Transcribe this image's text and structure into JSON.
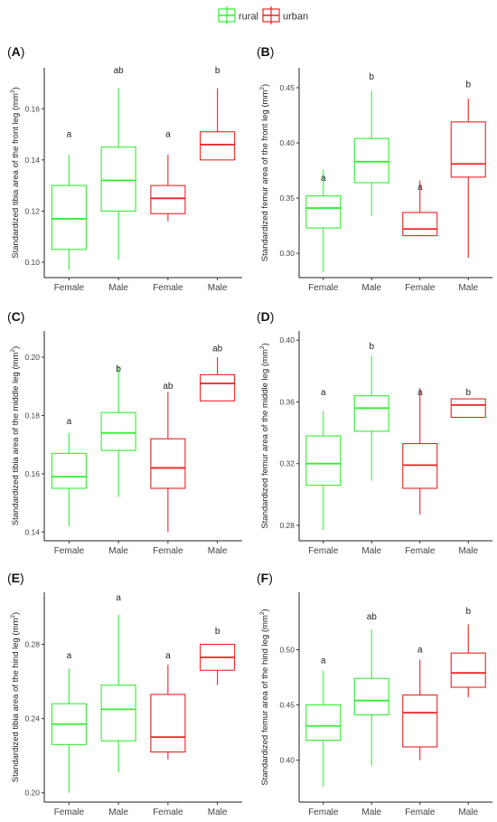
{
  "legend": {
    "entries": [
      {
        "name": "rural",
        "color": "#33ee33"
      },
      {
        "name": "urban",
        "color": "#ee2222"
      }
    ],
    "placement": "top-center"
  },
  "chart_data": [
    {
      "type": "box",
      "panel_label": "(A)",
      "ylabel": "Standardized tibia area of the front leg (mm",
      "ylabel_sup": "2",
      "ylabel_tail": ")",
      "categories": [
        "Female",
        "Male",
        "Female",
        "Male"
      ],
      "groups": [
        "rural",
        "rural",
        "urban",
        "urban"
      ],
      "ylim": [
        0.094,
        0.176
      ],
      "yticks": [
        0.1,
        0.12,
        0.14,
        0.16
      ],
      "yticklabels": [
        "0.10",
        "0.12",
        "0.14",
        "0.16"
      ],
      "boxes": [
        {
          "min": 0.097,
          "q1": 0.105,
          "median": 0.117,
          "q3": 0.13,
          "max": 0.142
        },
        {
          "min": 0.101,
          "q1": 0.12,
          "median": 0.132,
          "q3": 0.145,
          "max": 0.168
        },
        {
          "min": 0.116,
          "q1": 0.119,
          "median": 0.125,
          "q3": 0.13,
          "max": 0.142
        },
        {
          "min": 0.14,
          "q1": 0.14,
          "median": 0.146,
          "q3": 0.151,
          "max": 0.168
        }
      ],
      "letters": [
        "a",
        "ab",
        "a",
        "b"
      ],
      "letter_y": [
        0.15,
        0.175,
        0.15,
        0.175
      ],
      "grid": false
    },
    {
      "type": "box",
      "panel_label": "(B)",
      "ylabel": "Standardized femur area of the front leg (mm",
      "ylabel_sup": "2",
      "ylabel_tail": ")",
      "categories": [
        "Female",
        "Male",
        "Female",
        "Male"
      ],
      "groups": [
        "rural",
        "rural",
        "urban",
        "urban"
      ],
      "ylim": [
        0.278,
        0.468
      ],
      "yticks": [
        0.3,
        0.35,
        0.4,
        0.45
      ],
      "yticklabels": [
        "0.30",
        "0.35",
        "0.40",
        "0.45"
      ],
      "boxes": [
        {
          "min": 0.283,
          "q1": 0.323,
          "median": 0.341,
          "q3": 0.352,
          "max": 0.376
        },
        {
          "min": 0.334,
          "q1": 0.364,
          "median": 0.383,
          "q3": 0.404,
          "max": 0.447
        },
        {
          "min": 0.316,
          "q1": 0.316,
          "median": 0.322,
          "q3": 0.337,
          "max": 0.366
        },
        {
          "min": 0.296,
          "q1": 0.369,
          "median": 0.381,
          "q3": 0.419,
          "max": 0.44
        }
      ],
      "letters": [
        "a",
        "b",
        "a",
        "b"
      ],
      "letter_y": [
        0.368,
        0.46,
        0.36,
        0.453
      ],
      "grid": false
    },
    {
      "type": "box",
      "panel_label": "(C)",
      "ylabel": "Standardized tibia area of the middle leg (mm",
      "ylabel_sup": "2",
      "ylabel_tail": ")",
      "categories": [
        "Female",
        "Male",
        "Female",
        "Male"
      ],
      "groups": [
        "rural",
        "rural",
        "urban",
        "urban"
      ],
      "ylim": [
        0.137,
        0.209
      ],
      "yticks": [
        0.14,
        0.16,
        0.18,
        0.2
      ],
      "yticklabels": [
        "0.14",
        "0.16",
        "0.18",
        "0.20"
      ],
      "boxes": [
        {
          "min": 0.142,
          "q1": 0.155,
          "median": 0.159,
          "q3": 0.167,
          "max": 0.174
        },
        {
          "min": 0.152,
          "q1": 0.168,
          "median": 0.174,
          "q3": 0.181,
          "max": 0.197
        },
        {
          "min": 0.14,
          "q1": 0.155,
          "median": 0.162,
          "q3": 0.172,
          "max": 0.188
        },
        {
          "min": 0.185,
          "q1": 0.185,
          "median": 0.191,
          "q3": 0.194,
          "max": 0.2
        }
      ],
      "letters": [
        "a",
        "b",
        "ab",
        "ab"
      ],
      "letter_y": [
        0.178,
        0.196,
        0.19,
        0.203
      ],
      "grid": false
    },
    {
      "type": "box",
      "panel_label": "(D)",
      "ylabel": "Standardized femur area of the middle leg (mm",
      "ylabel_sup": "2",
      "ylabel_tail": ")",
      "categories": [
        "Female",
        "Male",
        "Female",
        "Male"
      ],
      "groups": [
        "rural",
        "rural",
        "urban",
        "urban"
      ],
      "ylim": [
        0.27,
        0.406
      ],
      "yticks": [
        0.28,
        0.32,
        0.36,
        0.4
      ],
      "yticklabels": [
        "0.28",
        "0.32",
        "0.36",
        "0.40"
      ],
      "boxes": [
        {
          "min": 0.277,
          "q1": 0.306,
          "median": 0.32,
          "q3": 0.338,
          "max": 0.354
        },
        {
          "min": 0.309,
          "q1": 0.341,
          "median": 0.356,
          "q3": 0.364,
          "max": 0.39
        },
        {
          "min": 0.287,
          "q1": 0.304,
          "median": 0.319,
          "q3": 0.333,
          "max": 0.369
        },
        {
          "min": 0.35,
          "q1": 0.35,
          "median": 0.358,
          "q3": 0.362,
          "max": 0.362
        }
      ],
      "letters": [
        "a",
        "b",
        "a",
        "b"
      ],
      "letter_y": [
        0.366,
        0.396,
        0.366,
        0.366
      ],
      "grid": false
    },
    {
      "type": "box",
      "panel_label": "(E)",
      "ylabel": "Standardized tibia area of the hind leg (mm",
      "ylabel_sup": "2",
      "ylabel_tail": ")",
      "categories": [
        "Female",
        "Male",
        "Female",
        "Male"
      ],
      "groups": [
        "rural",
        "rural",
        "urban",
        "urban"
      ],
      "ylim": [
        0.195,
        0.308
      ],
      "yticks": [
        0.2,
        0.24,
        0.28
      ],
      "yticklabels": [
        "0.20",
        "0.24",
        "0.28"
      ],
      "boxes": [
        {
          "min": 0.2,
          "q1": 0.226,
          "median": 0.237,
          "q3": 0.248,
          "max": 0.267
        },
        {
          "min": 0.211,
          "q1": 0.228,
          "median": 0.245,
          "q3": 0.258,
          "max": 0.296
        },
        {
          "min": 0.218,
          "q1": 0.222,
          "median": 0.23,
          "q3": 0.253,
          "max": 0.269
        },
        {
          "min": 0.258,
          "q1": 0.266,
          "median": 0.273,
          "q3": 0.28,
          "max": 0.28
        }
      ],
      "letters": [
        "a",
        "a",
        "a",
        "b"
      ],
      "letter_y": [
        0.274,
        0.305,
        0.274,
        0.287
      ],
      "grid": false
    },
    {
      "type": "box",
      "panel_label": "(F)",
      "ylabel": "Standardized femur area of the hind leg (mm",
      "ylabel_sup": "2",
      "ylabel_tail": ")",
      "categories": [
        "Female",
        "Male",
        "Female",
        "Male"
      ],
      "groups": [
        "rural",
        "rural",
        "urban",
        "urban"
      ],
      "ylim": [
        0.362,
        0.552
      ],
      "yticks": [
        0.4,
        0.45,
        0.5
      ],
      "yticklabels": [
        "0.40",
        "0.45",
        "0.50"
      ],
      "boxes": [
        {
          "min": 0.376,
          "q1": 0.418,
          "median": 0.431,
          "q3": 0.45,
          "max": 0.481
        },
        {
          "min": 0.395,
          "q1": 0.441,
          "median": 0.454,
          "q3": 0.474,
          "max": 0.518
        },
        {
          "min": 0.4,
          "q1": 0.412,
          "median": 0.443,
          "q3": 0.459,
          "max": 0.491
        },
        {
          "min": 0.457,
          "q1": 0.466,
          "median": 0.479,
          "q3": 0.497,
          "max": 0.523
        }
      ],
      "letters": [
        "a",
        "ab",
        "a",
        "b"
      ],
      "letter_y": [
        0.49,
        0.53,
        0.5,
        0.535
      ],
      "grid": false
    }
  ]
}
